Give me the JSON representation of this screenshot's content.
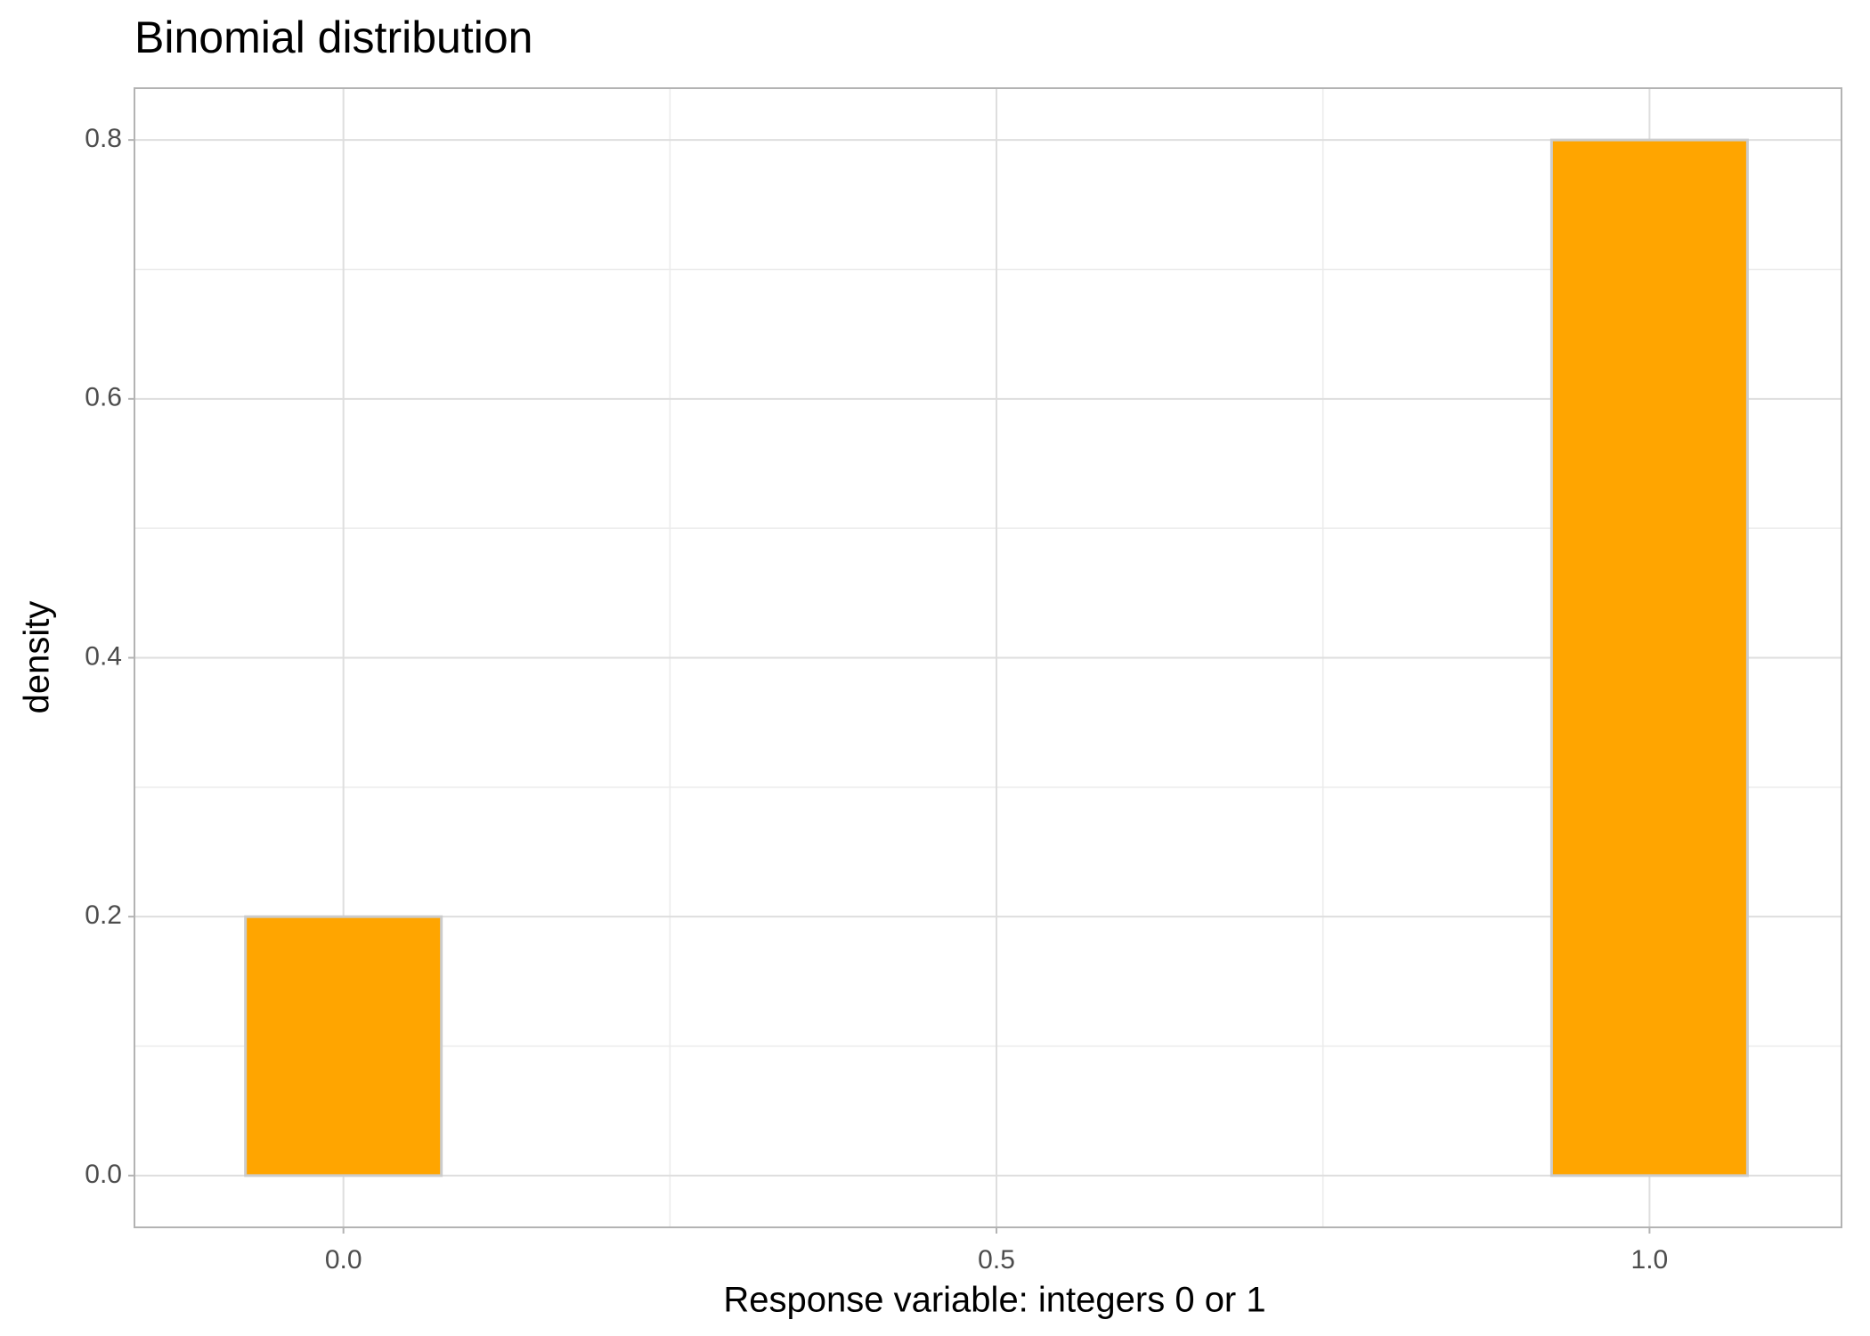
{
  "chart_data": {
    "type": "bar",
    "title": "Binomial distribution",
    "x_label": "Response variable: integers 0 or 1",
    "y_label": "density",
    "x": [
      0,
      1
    ],
    "values": [
      0.2,
      0.8
    ],
    "bar_width": 0.15,
    "color": "#ffa500",
    "edge_color": "#cccccc",
    "xlim": [
      -0.16,
      1.147
    ],
    "xticks": [
      {
        "value": 0,
        "label": "0.0"
      },
      {
        "value": 0.5,
        "label": "0.5"
      },
      {
        "value": 1,
        "label": "1.0"
      }
    ],
    "ylim": [
      -0.04,
      0.84
    ],
    "yticks": [
      {
        "value": 0,
        "label": "0.0"
      },
      0.2,
      0.4,
      0.6,
      0.8
    ],
    "grid": true,
    "minor_grid": true
  }
}
